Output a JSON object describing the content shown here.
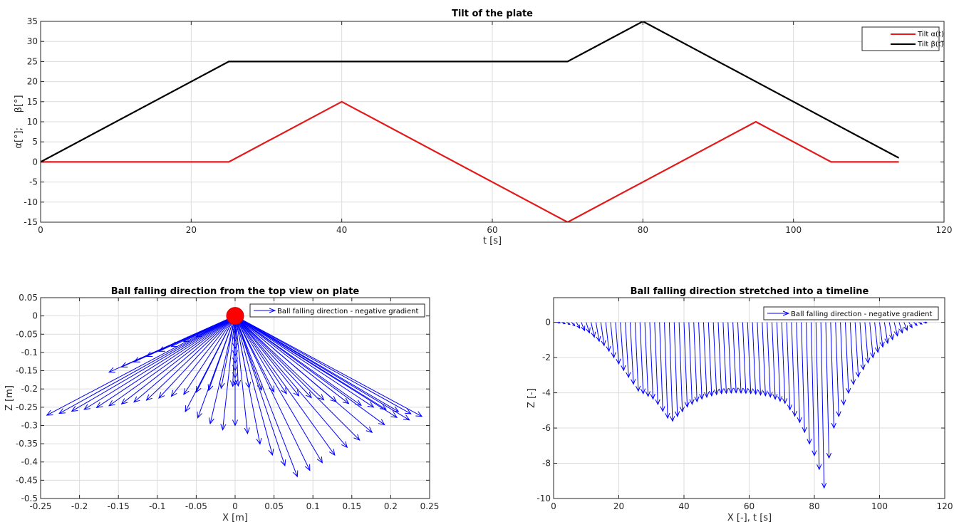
{
  "colors": {
    "alpha": "#e31a1c",
    "beta": "#000000",
    "arrows": "#0000ff",
    "ball": "#ff0000"
  },
  "chart_data": [
    {
      "type": "line",
      "title": "Tilt of the plate",
      "xlabel": "t [s]",
      "ylabel": "α[°];     β[°]",
      "xlim": [
        0,
        120
      ],
      "ylim": [
        -15,
        35
      ],
      "xticks": [
        0,
        20,
        40,
        60,
        80,
        100,
        120
      ],
      "yticks": [
        -15,
        -10,
        -5,
        0,
        5,
        10,
        15,
        20,
        25,
        30,
        35
      ],
      "grid": true,
      "legend": "top-right",
      "series": [
        {
          "name": "Tilt α(t)",
          "color": "#e31a1c",
          "points": [
            [
              0,
              0
            ],
            [
              25,
              0
            ],
            [
              40,
              15
            ],
            [
              70,
              -15
            ],
            [
              95,
              10
            ],
            [
              105,
              0
            ],
            [
              114,
              0
            ]
          ]
        },
        {
          "name": "Tilt β(t)",
          "color": "#000000",
          "points": [
            [
              0,
              0
            ],
            [
              25,
              25
            ],
            [
              70,
              25
            ],
            [
              80,
              35
            ],
            [
              114,
              1
            ]
          ]
        }
      ]
    },
    {
      "type": "quiver",
      "title": "Ball falling direction from the top view on plate",
      "xlabel": "X [m]",
      "ylabel": "Z [m]",
      "xlim": [
        -0.25,
        0.25
      ],
      "ylim": [
        -0.5,
        0.05
      ],
      "xticks": [
        -0.25,
        -0.2,
        -0.15,
        -0.1,
        -0.05,
        0,
        0.05,
        0.1,
        0.15,
        0.2,
        0.25
      ],
      "yticks": [
        -0.5,
        -0.45,
        -0.4,
        -0.35,
        -0.3,
        -0.25,
        -0.2,
        -0.15,
        -0.1,
        -0.05,
        0,
        0.05
      ],
      "grid": true,
      "legend": "top-right",
      "legend_label": "Ball falling direction - negative gradient",
      "origin": [
        0,
        0
      ],
      "arrow_tips": [
        [
          -0.242,
          -0.272
        ],
        [
          -0.226,
          -0.267
        ],
        [
          -0.21,
          -0.261
        ],
        [
          -0.194,
          -0.256
        ],
        [
          -0.178,
          -0.251
        ],
        [
          -0.162,
          -0.246
        ],
        [
          -0.146,
          -0.241
        ],
        [
          -0.13,
          -0.236
        ],
        [
          -0.114,
          -0.231
        ],
        [
          -0.098,
          -0.225
        ],
        [
          -0.082,
          -0.22
        ],
        [
          -0.066,
          -0.215
        ],
        [
          -0.05,
          -0.209
        ],
        [
          -0.034,
          -0.204
        ],
        [
          -0.018,
          -0.198
        ],
        [
          -0.003,
          -0.193
        ],
        [
          -0.162,
          -0.154
        ],
        [
          -0.146,
          -0.14
        ],
        [
          -0.13,
          -0.126
        ],
        [
          -0.114,
          -0.111
        ],
        [
          -0.098,
          -0.097
        ],
        [
          -0.082,
          -0.084
        ],
        [
          -0.066,
          -0.07
        ],
        [
          -0.05,
          -0.057
        ],
        [
          -0.064,
          -0.262
        ],
        [
          -0.048,
          -0.279
        ],
        [
          -0.032,
          -0.295
        ],
        [
          -0.016,
          -0.312
        ],
        [
          0,
          -0.05
        ],
        [
          0,
          -0.07
        ],
        [
          0,
          -0.09
        ],
        [
          0,
          -0.11
        ],
        [
          0,
          -0.13
        ],
        [
          0,
          -0.15
        ],
        [
          0,
          -0.17
        ],
        [
          0,
          -0.19
        ],
        [
          0,
          -0.3
        ],
        [
          0.016,
          -0.322
        ],
        [
          0.032,
          -0.351
        ],
        [
          0.048,
          -0.381
        ],
        [
          0.064,
          -0.41
        ],
        [
          0.08,
          -0.44
        ],
        [
          0.096,
          -0.423
        ],
        [
          0.112,
          -0.402
        ],
        [
          0.128,
          -0.381
        ],
        [
          0.144,
          -0.36
        ],
        [
          0.16,
          -0.34
        ],
        [
          0.176,
          -0.319
        ],
        [
          0.192,
          -0.298
        ],
        [
          0.208,
          -0.278
        ],
        [
          0.224,
          -0.285
        ],
        [
          0.24,
          -0.275
        ],
        [
          0.226,
          -0.268
        ],
        [
          0.21,
          -0.262
        ],
        [
          0.194,
          -0.256
        ],
        [
          0.178,
          -0.25
        ],
        [
          0.162,
          -0.245
        ],
        [
          0.146,
          -0.24
        ],
        [
          0.13,
          -0.235
        ],
        [
          0.114,
          -0.23
        ],
        [
          0.098,
          -0.224
        ],
        [
          0.082,
          -0.219
        ],
        [
          0.066,
          -0.213
        ],
        [
          0.05,
          -0.208
        ],
        [
          0.034,
          -0.203
        ],
        [
          0.018,
          -0.197
        ],
        [
          0.004,
          -0.192
        ]
      ]
    },
    {
      "type": "quiver",
      "title": "Ball falling direction stretched into a timeline",
      "xlabel": "X [-], t [s]",
      "ylabel": "Z [-]",
      "xlim": [
        0,
        120
      ],
      "ylim": [
        -10,
        1.4
      ],
      "xticks": [
        0,
        20,
        40,
        60,
        80,
        100,
        120
      ],
      "yticks": [
        -10,
        -8,
        -6,
        -4,
        -2,
        0
      ],
      "grid": true,
      "legend": "top-right",
      "legend_label": "Ball falling direction - negative gradient",
      "baseline": 0,
      "arrow_x_range": [
        1,
        114
      ],
      "arrow_step": 1.5,
      "depth_profile": [
        [
          0,
          0
        ],
        [
          5,
          -0.15
        ],
        [
          10,
          -0.6
        ],
        [
          15,
          -1.4
        ],
        [
          20,
          -2.6
        ],
        [
          25,
          -3.9
        ],
        [
          30,
          -4.4
        ],
        [
          35,
          -5.7
        ],
        [
          40,
          -4.8
        ],
        [
          45,
          -4.3
        ],
        [
          50,
          -4.05
        ],
        [
          55,
          -4.0
        ],
        [
          60,
          -4.05
        ],
        [
          65,
          -4.2
        ],
        [
          70,
          -4.6
        ],
        [
          75,
          -5.8
        ],
        [
          80,
          -8.0
        ],
        [
          82,
          -9.4
        ],
        [
          85,
          -6.0
        ],
        [
          90,
          -3.8
        ],
        [
          95,
          -2.4
        ],
        [
          100,
          -1.4
        ],
        [
          105,
          -0.7
        ],
        [
          110,
          -0.2
        ],
        [
          114,
          0
        ]
      ]
    }
  ]
}
